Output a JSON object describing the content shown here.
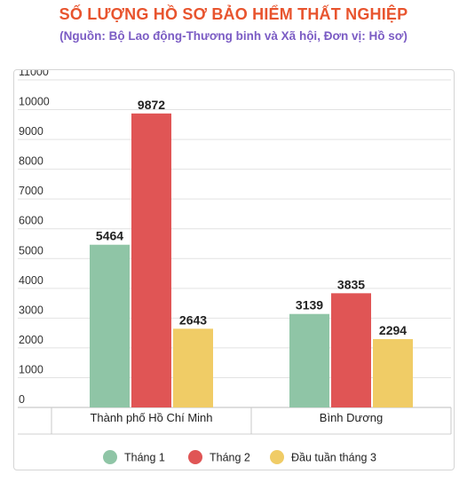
{
  "chart_data": {
    "type": "bar",
    "title": "SỐ LƯỢNG HỒ SƠ BẢO HIỂM THẤT NGHIỆP",
    "subtitle": "(Nguồn:  Bộ Lao động-Thương binh và Xã hội, Đơn vị: Hồ sơ)",
    "categories": [
      "Thành phố Hồ Chí Minh",
      "Bình Dương"
    ],
    "series": [
      {
        "name": "Tháng 1",
        "values": [
          5464,
          3139
        ],
        "color": "#8fc5a6"
      },
      {
        "name": "Tháng 2",
        "values": [
          9872,
          3835
        ],
        "color": "#e05555"
      },
      {
        "name": "Đầu tuần tháng 3",
        "values": [
          2643,
          2294
        ],
        "color": "#f0cc66"
      }
    ],
    "yticks": [
      0,
      1000,
      2000,
      3000,
      4000,
      5000,
      6000,
      7000,
      8000,
      9000,
      10000,
      11000
    ],
    "ylim": [
      0,
      11000
    ],
    "grid": true,
    "legend": "bottom-center"
  }
}
